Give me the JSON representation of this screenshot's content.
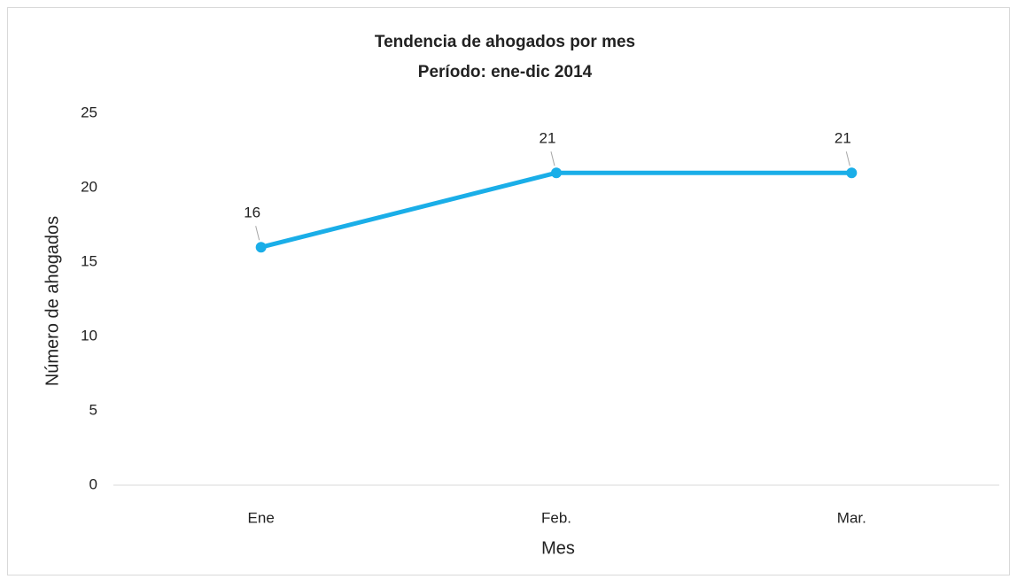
{
  "chart_data": {
    "type": "line",
    "title": "Tendencia de ahogados por mes",
    "subtitle": "Período: ene-dic 2014",
    "x_label": "Mes",
    "y_label": "Número de ahogados",
    "categories": [
      "Ene",
      "Feb.",
      "Mar."
    ],
    "series": [
      {
        "name": "Ahogados",
        "color": "#1aaee8",
        "values": [
          16,
          21,
          21
        ]
      }
    ],
    "ylim": [
      0,
      25
    ],
    "yticks": [
      0,
      5,
      10,
      15,
      20,
      25
    ],
    "grid": false
  }
}
